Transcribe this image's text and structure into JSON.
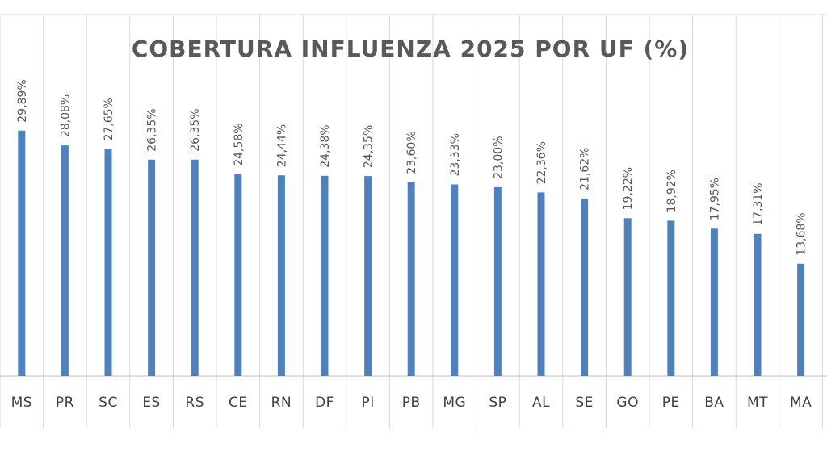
{
  "chart_data": {
    "type": "bar",
    "title": "COBERTURA INFLUENZA 2025 POR UF (%)",
    "xlabel": "",
    "ylabel": "",
    "ylim": [
      0,
      32
    ],
    "grid": "vertical",
    "legend": "none",
    "categories": [
      "MS",
      "PR",
      "SC",
      "ES",
      "RS",
      "CE",
      "RN",
      "DF",
      "PI",
      "PB",
      "MG",
      "SP",
      "AL",
      "SE",
      "GO",
      "PE",
      "BA",
      "MT",
      "MA"
    ],
    "values": [
      29.89,
      28.08,
      27.65,
      26.35,
      26.35,
      24.58,
      24.44,
      24.38,
      24.35,
      23.6,
      23.33,
      23.0,
      22.36,
      21.62,
      19.22,
      18.92,
      17.95,
      17.31,
      13.68
    ],
    "data_labels": [
      "29,89%",
      "28,08%",
      "27,65%",
      "26,35%",
      "26,35%",
      "24,58%",
      "24,44%",
      "24,38%",
      "24,35%",
      "23,60%",
      "23,33%",
      "23,00%",
      "22,36%",
      "21,62%",
      "19,22%",
      "18,92%",
      "17,95%",
      "17,31%",
      "13,68%"
    ],
    "colors": {
      "bar": "#4f81bd",
      "text": "#595959",
      "grid": "#d9d9d9",
      "axis": "#bfbfbf"
    }
  }
}
